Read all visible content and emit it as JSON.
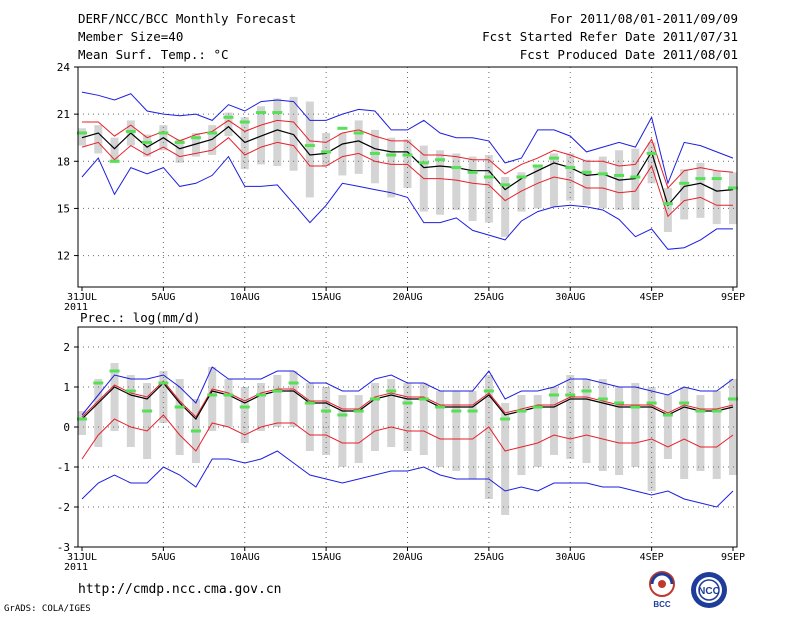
{
  "header": {
    "title": "DERF/NCC/BCC Monthly Forecast",
    "member_size": "Member Size=40",
    "variable": "Mean Surf. Temp.: °C",
    "period": "For 2011/08/01-2011/09/09",
    "started": "Fcst Started Refer Date 2011/07/31",
    "produced": "Fcst Produced Date 2011/08/01"
  },
  "footer": {
    "url": "http://cmdp.ncc.cma.gov.cn",
    "grads": "GrADS: COLA/IGES",
    "logo_bcc": "BCC",
    "logo_ncc": "NCC"
  },
  "colors": {
    "ensemble_bar": "#d4d4d4",
    "observed": "#55e055",
    "mean": "#000000",
    "inner_band": "#e8202a",
    "outer_band": "#1e1ee0",
    "grid": "#6a6a6a"
  },
  "chart_data": [
    {
      "type": "line",
      "title": "Mean Surf. Temp.: °C",
      "xlabel": "",
      "ylabel": "",
      "x_ticks": [
        "31JUL\n2011",
        "5AUG",
        "10AUG",
        "15AUG",
        "20AUG",
        "25AUG",
        "30AUG",
        "4SEP",
        "9SEP"
      ],
      "x_range": [
        0,
        40
      ],
      "ylim": [
        10,
        24
      ],
      "yticks": [
        12,
        15,
        18,
        21,
        24
      ],
      "series": [
        {
          "name": "ensemble mean",
          "values": [
            19.5,
            19.8,
            18.8,
            19.8,
            18.9,
            19.5,
            18.8,
            19.1,
            19.4,
            20.2,
            19.2,
            19.6,
            20.0,
            19.7,
            18.4,
            18.5,
            19.1,
            19.3,
            18.8,
            18.6,
            18.6,
            17.6,
            17.7,
            17.6,
            17.4,
            17.4,
            16.2,
            16.9,
            17.4,
            17.9,
            17.6,
            17.1,
            17.2,
            16.8,
            16.9,
            18.6,
            15.2,
            16.4,
            16.6,
            16.1,
            16.2
          ]
        },
        {
          "name": "upper (red)",
          "values": [
            20.5,
            20.5,
            19.6,
            20.3,
            19.5,
            19.9,
            19.3,
            19.7,
            19.9,
            20.6,
            19.9,
            20.3,
            20.6,
            20.5,
            19.3,
            19.2,
            19.8,
            20.0,
            19.6,
            19.3,
            19.3,
            18.4,
            18.4,
            18.3,
            18.1,
            18.1,
            17.2,
            17.8,
            18.2,
            18.7,
            18.4,
            18.0,
            18.0,
            17.7,
            17.8,
            19.4,
            16.3,
            17.4,
            17.6,
            17.4,
            17.3
          ]
        },
        {
          "name": "lower (red)",
          "values": [
            18.9,
            19.2,
            18.1,
            19.0,
            18.4,
            18.9,
            18.3,
            18.5,
            18.7,
            19.5,
            18.4,
            18.9,
            19.2,
            19.0,
            17.7,
            17.7,
            18.3,
            18.5,
            18.0,
            17.8,
            17.8,
            16.9,
            16.9,
            16.8,
            16.6,
            16.5,
            15.5,
            16.1,
            16.6,
            17.0,
            16.8,
            16.3,
            16.3,
            16.0,
            16.1,
            17.7,
            14.5,
            15.5,
            15.7,
            15.2,
            15.2
          ]
        },
        {
          "name": "max (blue)",
          "values": [
            22.4,
            22.2,
            21.9,
            22.3,
            21.2,
            21.0,
            20.9,
            21.0,
            20.6,
            21.6,
            21.2,
            21.8,
            21.9,
            21.8,
            20.6,
            20.6,
            21.0,
            21.3,
            21.2,
            20.0,
            20.0,
            20.6,
            19.8,
            19.5,
            19.5,
            19.3,
            17.9,
            18.2,
            20.0,
            20.0,
            19.6,
            18.6,
            18.9,
            19.2,
            18.9,
            20.8,
            16.6,
            19.2,
            19.0,
            18.6,
            18.2
          ]
        },
        {
          "name": "min (blue)",
          "values": [
            17.0,
            18.2,
            15.9,
            17.6,
            17.2,
            17.6,
            16.4,
            16.6,
            17.1,
            18.3,
            16.4,
            16.4,
            16.5,
            15.3,
            14.1,
            15.2,
            16.6,
            16.4,
            16.2,
            16.0,
            15.7,
            14.1,
            14.1,
            14.4,
            13.6,
            13.3,
            13.0,
            14.2,
            14.8,
            15.1,
            15.2,
            15.1,
            14.9,
            14.3,
            13.2,
            13.7,
            12.4,
            12.5,
            13.0,
            13.7,
            13.7
          ]
        },
        {
          "name": "bar top",
          "values": [
            20.1,
            20.3,
            19.5,
            20.6,
            19.7,
            20.3,
            19.4,
            19.8,
            20.3,
            21.1,
            20.8,
            21.5,
            22.0,
            22.1,
            21.8,
            19.8,
            19.8,
            20.6,
            20.0,
            19.5,
            19.4,
            19.0,
            18.7,
            18.5,
            18.3,
            18.4,
            17.0,
            17.3,
            17.7,
            18.5,
            18.5,
            18.1,
            18.3,
            18.7,
            18.8,
            19.2,
            16.3,
            17.5,
            17.9,
            17.4,
            17.3
          ]
        },
        {
          "name": "bar bottom",
          "values": [
            19.0,
            18.5,
            17.9,
            19.0,
            18.3,
            18.7,
            17.9,
            18.3,
            18.4,
            19.6,
            17.5,
            17.8,
            17.7,
            17.4,
            15.7,
            17.7,
            17.1,
            17.2,
            16.6,
            15.7,
            16.3,
            14.8,
            14.6,
            14.9,
            14.2,
            14.1,
            13.2,
            14.8,
            15.0,
            15.1,
            15.5,
            15.2,
            15.0,
            14.9,
            14.9,
            16.6,
            13.5,
            14.3,
            14.4,
            14.0,
            14.0
          ]
        },
        {
          "name": "observed",
          "values": [
            19.8,
            null,
            18.0,
            19.9,
            19.2,
            19.8,
            19.2,
            19.5,
            19.8,
            20.8,
            20.5,
            21.1,
            21.1,
            null,
            19.0,
            18.6,
            20.1,
            19.8,
            18.5,
            18.4,
            18.4,
            17.9,
            18.1,
            17.6,
            17.3,
            17.0,
            16.5,
            17.0,
            17.7,
            18.2,
            17.6,
            17.3,
            17.2,
            17.1,
            17.0,
            18.5,
            15.3,
            16.6,
            16.9,
            16.9,
            16.3
          ]
        }
      ]
    },
    {
      "type": "line",
      "title": "Prec.: log(mm/d)",
      "xlabel": "",
      "ylabel": "",
      "x_ticks": [
        "31JUL\n2011",
        "5AUG",
        "10AUG",
        "15AUG",
        "20AUG",
        "25AUG",
        "30AUG",
        "4SEP",
        "9SEP"
      ],
      "x_range": [
        0,
        40
      ],
      "ylim": [
        -3,
        2.5
      ],
      "yticks": [
        -3,
        -2,
        -1,
        0,
        1,
        2
      ],
      "series": [
        {
          "name": "ensemble mean",
          "values": [
            0.2,
            0.6,
            1.0,
            0.8,
            0.7,
            1.1,
            0.6,
            0.2,
            0.9,
            0.8,
            0.6,
            0.8,
            0.9,
            0.9,
            0.6,
            0.6,
            0.4,
            0.4,
            0.7,
            0.8,
            0.7,
            0.7,
            0.5,
            0.5,
            0.5,
            0.8,
            0.3,
            0.4,
            0.5,
            0.5,
            0.7,
            0.7,
            0.6,
            0.5,
            0.5,
            0.5,
            0.3,
            0.5,
            0.4,
            0.4,
            0.5
          ]
        },
        {
          "name": "upper (red)",
          "values": [
            0.25,
            0.65,
            1.05,
            0.85,
            0.75,
            1.15,
            0.65,
            0.25,
            0.95,
            0.85,
            0.65,
            0.85,
            0.95,
            0.95,
            0.65,
            0.65,
            0.45,
            0.45,
            0.75,
            0.85,
            0.75,
            0.75,
            0.55,
            0.55,
            0.55,
            0.85,
            0.35,
            0.45,
            0.55,
            0.55,
            0.75,
            0.75,
            0.65,
            0.55,
            0.55,
            0.55,
            0.35,
            0.55,
            0.45,
            0.45,
            0.55
          ]
        },
        {
          "name": "lower (red)",
          "values": [
            -0.8,
            -0.2,
            0.2,
            0.0,
            -0.1,
            0.3,
            -0.2,
            -0.6,
            0.1,
            0.0,
            -0.2,
            0.0,
            0.1,
            0.1,
            -0.2,
            -0.2,
            -0.4,
            -0.4,
            -0.1,
            0.0,
            -0.1,
            -0.1,
            -0.3,
            -0.3,
            -0.3,
            0.0,
            -0.6,
            -0.5,
            -0.4,
            -0.2,
            -0.3,
            -0.2,
            -0.3,
            -0.4,
            -0.4,
            -0.3,
            -0.5,
            -0.3,
            -0.5,
            -0.5,
            -0.2
          ]
        },
        {
          "name": "max (blue)",
          "values": [
            0.3,
            0.8,
            1.3,
            1.2,
            1.2,
            1.3,
            1.0,
            0.6,
            1.5,
            1.2,
            1.2,
            1.2,
            1.4,
            1.4,
            1.1,
            1.1,
            0.9,
            0.9,
            1.2,
            1.3,
            1.1,
            1.1,
            0.9,
            0.9,
            0.9,
            1.4,
            0.7,
            0.9,
            0.9,
            1.0,
            1.2,
            1.2,
            1.1,
            1.0,
            1.0,
            0.9,
            0.8,
            1.0,
            0.9,
            0.9,
            1.2
          ]
        },
        {
          "name": "min (blue)",
          "values": [
            -1.8,
            -1.4,
            -1.2,
            -1.4,
            -1.4,
            -1.0,
            -1.2,
            -1.5,
            -0.8,
            -0.8,
            -0.9,
            -0.8,
            -0.6,
            -0.9,
            -1.2,
            -1.3,
            -1.4,
            -1.3,
            -1.2,
            -1.1,
            -1.1,
            -1.0,
            -1.2,
            -1.3,
            -1.3,
            -1.3,
            -1.6,
            -1.5,
            -1.6,
            -1.4,
            -1.4,
            -1.4,
            -1.5,
            -1.5,
            -1.6,
            -1.7,
            -1.6,
            -1.8,
            -1.9,
            -2.0,
            -1.6
          ]
        },
        {
          "name": "bar top",
          "values": [
            0.4,
            1.2,
            1.6,
            1.3,
            1.1,
            1.4,
            1.2,
            0.7,
            1.5,
            1.2,
            1.0,
            1.1,
            1.3,
            1.4,
            1.1,
            1.0,
            0.8,
            0.8,
            1.1,
            1.2,
            1.1,
            1.1,
            0.9,
            0.9,
            0.9,
            1.3,
            0.6,
            0.8,
            0.8,
            1.0,
            1.3,
            1.2,
            1.2,
            1.0,
            1.1,
            1.0,
            0.8,
            1.0,
            0.8,
            0.9,
            1.2
          ]
        },
        {
          "name": "bar bottom",
          "values": [
            -0.2,
            -0.5,
            -0.1,
            -0.5,
            -0.8,
            0.1,
            -0.7,
            -0.9,
            -0.1,
            0.0,
            -0.4,
            -0.1,
            0.0,
            0.0,
            -0.6,
            -0.7,
            -1.0,
            -0.9,
            -0.6,
            -0.5,
            -0.6,
            -0.7,
            -1.0,
            -1.1,
            -1.3,
            -1.8,
            -2.2,
            -1.2,
            -1.0,
            -0.7,
            -0.8,
            -0.9,
            -1.1,
            -1.2,
            -1.0,
            -1.6,
            -0.8,
            -1.3,
            -1.1,
            -1.3,
            -1.2
          ]
        },
        {
          "name": "observed",
          "values": [
            0.2,
            1.1,
            1.4,
            0.9,
            0.4,
            1.1,
            0.5,
            -0.1,
            0.8,
            0.8,
            0.5,
            0.8,
            0.9,
            1.1,
            0.6,
            0.4,
            0.3,
            0.4,
            0.7,
            0.9,
            0.6,
            0.7,
            0.5,
            0.4,
            0.4,
            0.9,
            0.2,
            0.4,
            0.5,
            0.8,
            0.8,
            0.9,
            0.7,
            0.6,
            0.5,
            0.6,
            0.3,
            0.6,
            0.4,
            0.4,
            0.7
          ]
        }
      ]
    }
  ]
}
